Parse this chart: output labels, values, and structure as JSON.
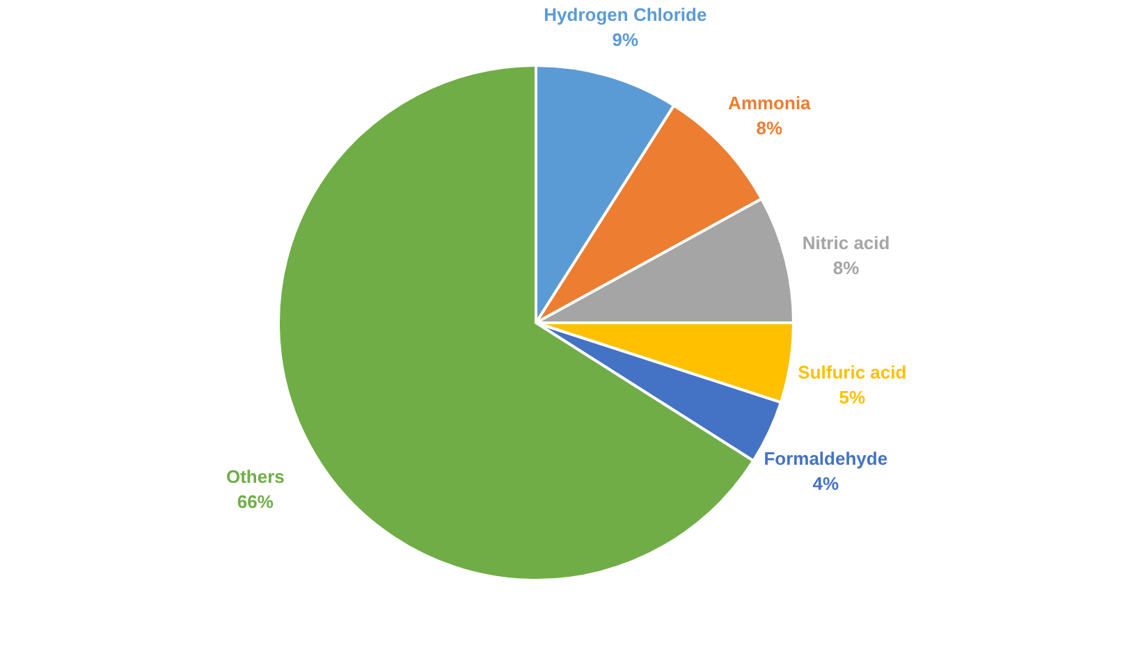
{
  "chart_data": {
    "type": "pie",
    "categories": [
      "Hydrogen Chloride",
      "Ammonia",
      "Nitric acid",
      "Sulfuric acid",
      "Formaldehyde",
      "Others"
    ],
    "values": [
      9,
      8,
      8,
      5,
      4,
      66
    ],
    "value_labels": [
      "9%",
      "8%",
      "8%",
      "5%",
      "4%",
      "66%"
    ],
    "colors": [
      "#5b9bd5",
      "#ed7d31",
      "#a5a5a5",
      "#ffc000",
      "#4472c4",
      "#70ad47"
    ],
    "legend": false
  }
}
